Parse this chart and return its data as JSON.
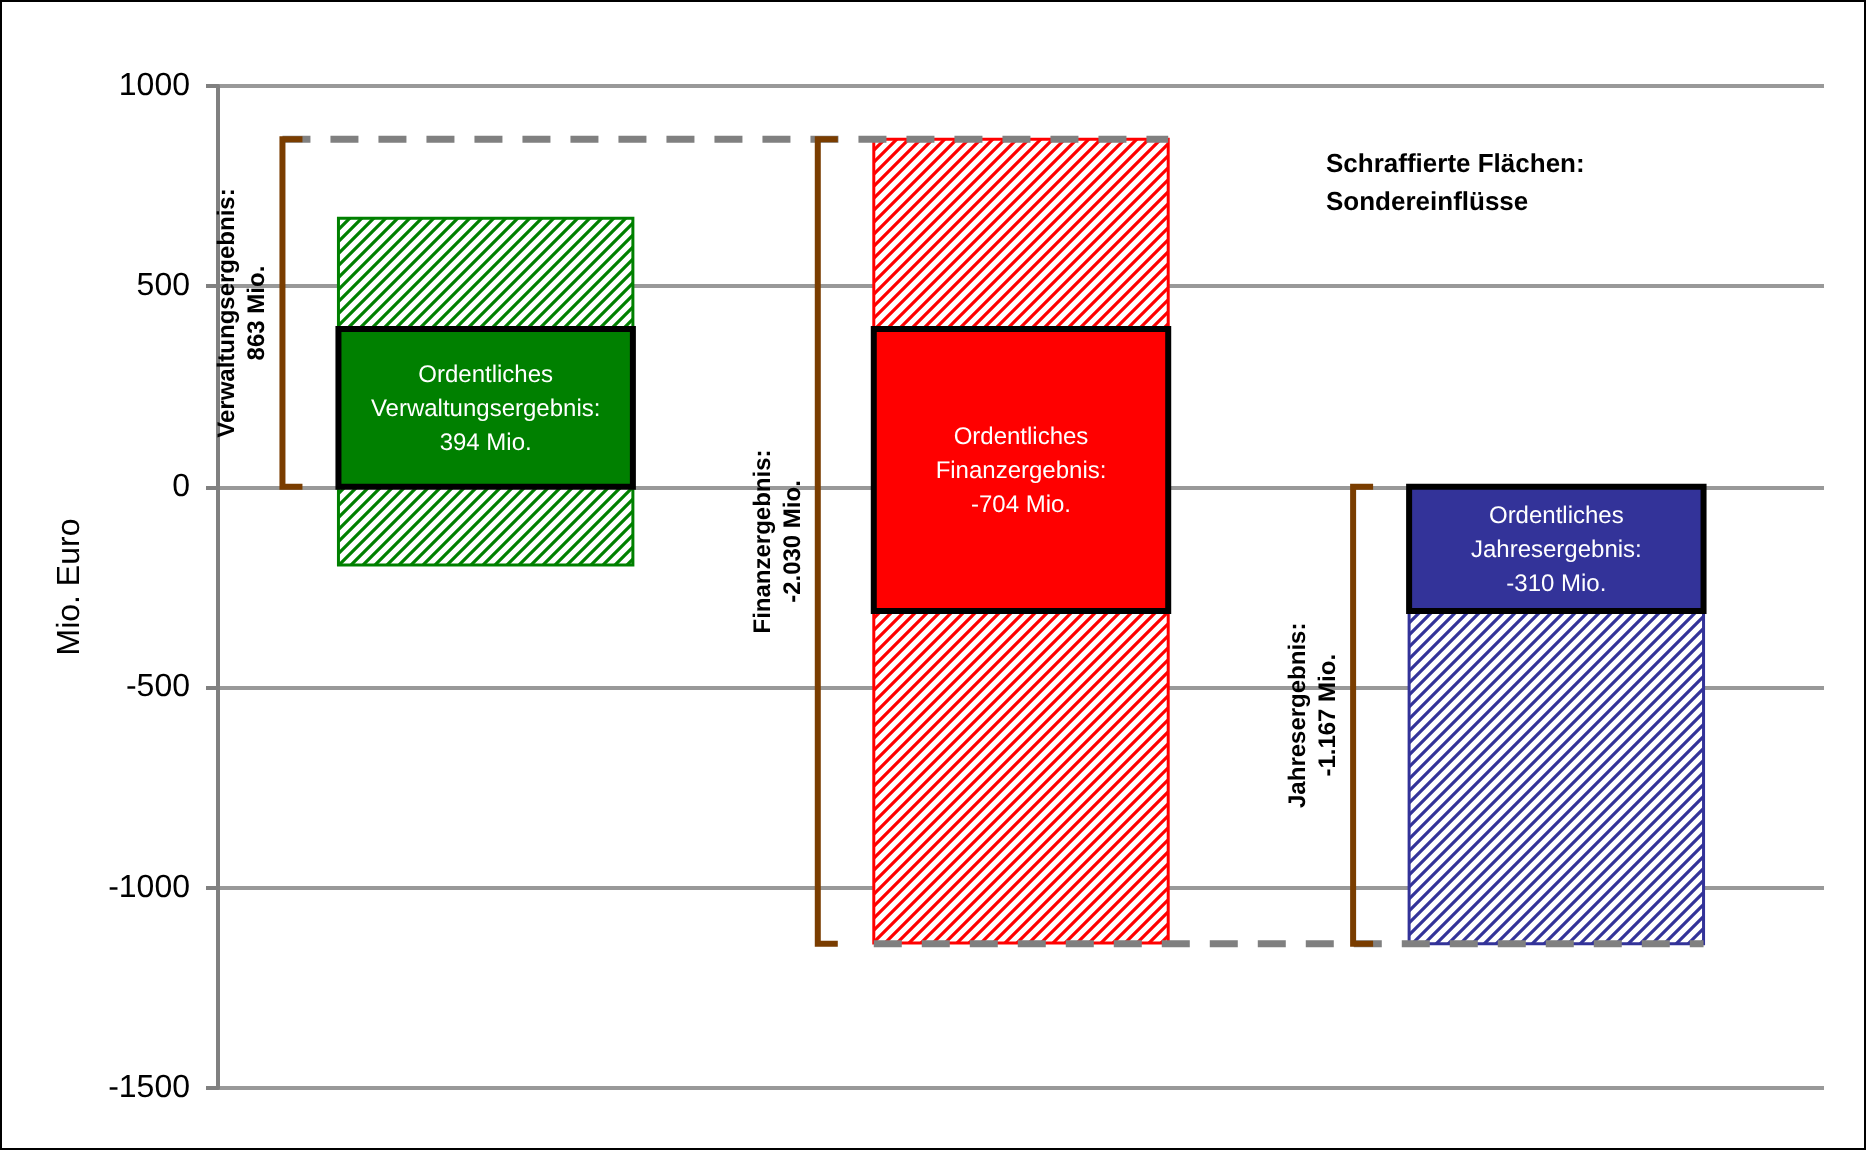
{
  "chart_data": {
    "type": "bar",
    "ylabel": "Mio. Euro",
    "categories": [
      null,
      null,
      null
    ],
    "series": [
      {
        "colors": [
          "#008000",
          "#ff0000",
          "#333399"
        ],
        "base": [
          -195,
          867,
          -310
        ],
        "values": [
          865,
          -2005,
          -830
        ]
      },
      {
        "colors": [
          "#008000",
          "#ff0000",
          "#333399"
        ],
        "base": [
          0,
          394,
          0
        ],
        "values": [
          394,
          -704,
          -310
        ],
        "value_labels": [
          "Ordentliches\nVerwaltungsergebnis:\n394 Mio.",
          "Ordentliches\nFinanzergebnis:\n-704 Mio.",
          "Ordentliches\nJahresergebnis:\n-310 Mio."
        ]
      }
    ],
    "ylim": [
      -1500,
      1000
    ],
    "yticks": [
      -1500,
      -1000,
      -500,
      0,
      500,
      1000
    ],
    "grid": "y",
    "ref_lines": [
      {
        "axis": "y",
        "value": 867,
        "color": "#808080",
        "line_style": "dashed"
      },
      {
        "axis": "y",
        "value": -1140,
        "color": "#808080",
        "line_style": "dashed"
      }
    ],
    "annotations": [
      "Verwaltungsergebnis:\n863 Mio.",
      "Finanzergebnis:\n-2.030 Mio.",
      "Jahresergebnis:\n-1.167 Mio.",
      "Schraffierte Flächen:\nSondereinflüsse"
    ]
  }
}
